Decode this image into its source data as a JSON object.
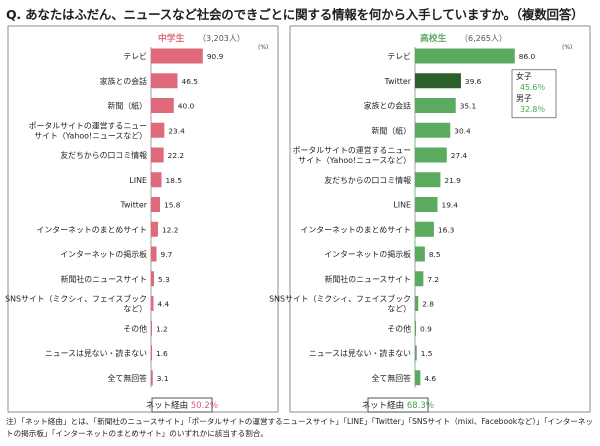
{
  "question": "Q. あなたはふだん、ニュースなど社会のできごとに関する情報を何から入手していますか。（複数回答）",
  "note": "注）「ネット経由」とは、「新聞社のニュースサイト」「ポータルサイトの運営するニュースサイト」「LINE」「Twitter」「SNSサイト（mixi、Facebookなど）」「インターネットの掲示板」「インターネットのまとめサイト」のいずれかに該当する割合。",
  "colors": {
    "junior": "#e06a7b",
    "senior": "#5aab60",
    "senior_highlight": "#2e5f2a",
    "pct_pink": "#e05a7a",
    "pct_green": "#3fa64a",
    "frame": "#8e8e8e"
  },
  "chart_data": [
    {
      "type": "bar",
      "orientation": "horizontal",
      "group": "中学生",
      "count": "（3,203人）",
      "unit": "(%)",
      "net_summary_label": "ネット経由",
      "net_summary_value": "50.2％",
      "categories": [
        "テレビ",
        "家族との会話",
        "新聞（紙）",
        "ポータルサイトの運営するニュースサイト（Yahoo!ニュースなど）",
        "友だちからの口コミ情報",
        "LINE",
        "Twitter",
        "インターネットのまとめサイト",
        "インターネットの掲示板",
        "新聞社のニュースサイト",
        "SNSサイト（ミクシィ、フェイスブックなど）",
        "その他",
        "ニュースは見ない・読まない",
        "全て無回答"
      ],
      "category_lines": [
        [
          "テレビ"
        ],
        [
          "家族との会話"
        ],
        [
          "新聞（紙）"
        ],
        [
          "ポータルサイトの運営するニュー",
          "サイト（Yahoo!ニュースなど）"
        ],
        [
          "友だちからの口コミ情報"
        ],
        [
          "LINE"
        ],
        [
          "Twitter"
        ],
        [
          "インターネットのまとめサイト"
        ],
        [
          "インターネットの掲示板"
        ],
        [
          "新聞社のニュースサイト"
        ],
        [
          "SNSサイト（ミクシィ、フェイスブック",
          "など）"
        ],
        [
          "その他"
        ],
        [
          "ニュースは見ない・読まない"
        ],
        [
          "全て無回答"
        ]
      ],
      "values": [
        90.9,
        46.5,
        40.0,
        23.4,
        22.2,
        18.5,
        15.8,
        12.2,
        9.7,
        5.3,
        4.4,
        1.2,
        1.6,
        3.1
      ],
      "value_labels": [
        "90.9",
        "46.5",
        "40.0",
        "23.4",
        "22.2",
        "18.5",
        "15.8",
        "12.2",
        "9.7",
        "5.3",
        "4.4",
        "1.2",
        "1.6",
        "3.1"
      ],
      "xlim": [
        0,
        100
      ]
    },
    {
      "type": "bar",
      "orientation": "horizontal",
      "group": "高校生",
      "count": "（6,265人）",
      "unit": "(%)",
      "net_summary_label": "ネット経由",
      "net_summary_value": "68.3％",
      "categories": [
        "テレビ",
        "Twitter",
        "家族との会話",
        "新聞（紙）",
        "ポータルサイトの運営するニュースサイト（Yahoo!ニュースなど）",
        "友だちからの口コミ情報",
        "LINE",
        "インターネットのまとめサイト",
        "インターネットの掲示板",
        "新聞社のニュースサイト",
        "SNSサイト（ミクシィ、フェイスブックなど）",
        "その他",
        "ニュースは見ない・読まない",
        "全て無回答"
      ],
      "category_lines": [
        [
          "テレビ"
        ],
        [
          "Twitter"
        ],
        [
          "家族との会話"
        ],
        [
          "新聞（紙）"
        ],
        [
          "ポータルサイトの運営するニュー",
          "サイト（Yahoo!ニュースなど）"
        ],
        [
          "友だちからの口コミ情報"
        ],
        [
          "LINE"
        ],
        [
          "インターネットのまとめサイト"
        ],
        [
          "インターネットの掲示板"
        ],
        [
          "新聞社のニュースサイト"
        ],
        [
          "SNSサイト（ミクシィ、フェイスブック",
          "など）"
        ],
        [
          "その他"
        ],
        [
          "ニュースは見ない・読まない"
        ],
        [
          "全て無回答"
        ]
      ],
      "values": [
        86.0,
        39.6,
        35.1,
        30.4,
        27.4,
        21.9,
        19.4,
        16.3,
        8.5,
        7.2,
        2.8,
        0.9,
        1.5,
        4.6
      ],
      "value_labels": [
        "86.0",
        "39.6",
        "35.1",
        "30.4",
        "27.4",
        "21.9",
        "19.4",
        "16.3",
        "8.5",
        "7.2",
        "2.8",
        "0.9",
        "1.5",
        "4.6"
      ],
      "highlight_index": 1,
      "gender_breakdown": {
        "category": "Twitter",
        "female_label": "女子",
        "female_value": "45.6％",
        "male_label": "男子",
        "male_value": "32.8％"
      },
      "xlim": [
        0,
        100
      ]
    }
  ]
}
